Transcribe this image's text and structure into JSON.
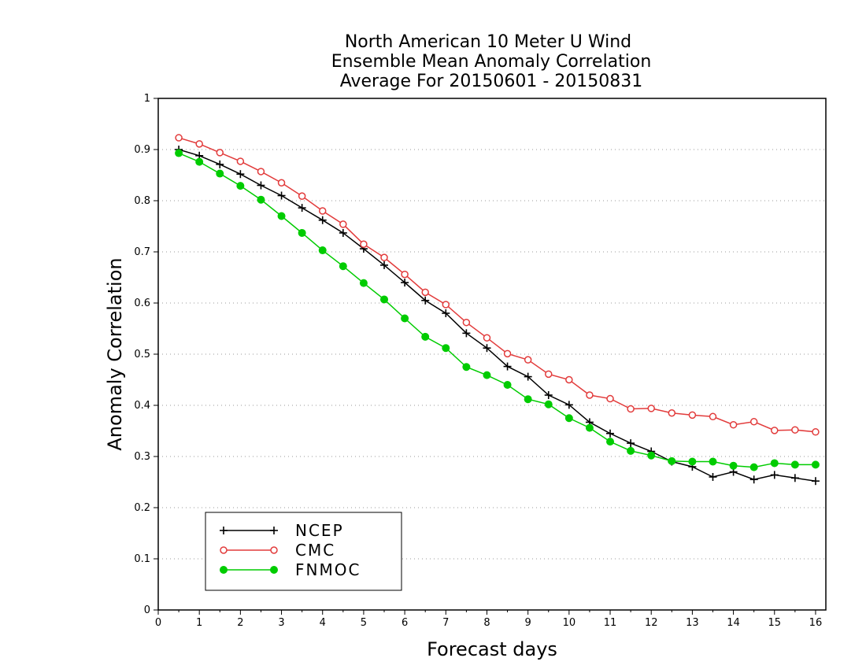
{
  "chart_data": {
    "type": "line",
    "title": [
      "North American 10 Meter U Wind",
      "Ensemble Mean Anomaly Correlation",
      "Average For 20150601 - 20150831"
    ],
    "xlabel": "Forecast days",
    "ylabel": "Anomaly Correlation",
    "xlim": [
      0,
      16.25
    ],
    "ylim": [
      0,
      1
    ],
    "xticks": [
      0,
      1,
      2,
      3,
      4,
      5,
      6,
      7,
      8,
      9,
      10,
      11,
      12,
      13,
      14,
      15,
      16
    ],
    "xtick_labels": [
      "0",
      "1",
      "2",
      "3",
      "4",
      "5",
      "6",
      "7",
      "8",
      "9",
      "10",
      "11",
      "12",
      "13",
      "14",
      "15",
      "16"
    ],
    "yticks": [
      0,
      0.1,
      0.2,
      0.3,
      0.4,
      0.5,
      0.6,
      0.7,
      0.8,
      0.9,
      1
    ],
    "ytick_labels": [
      "0",
      "0.1",
      "0.2",
      "0.3",
      "0.4",
      "0.5",
      "0.6",
      "0.7",
      "0.8",
      "0.9",
      "1"
    ],
    "grid": "horizontal dotted",
    "legend_position": "bottom-left",
    "x": [
      0.5,
      1,
      1.5,
      2,
      2.5,
      3,
      3.5,
      4,
      4.5,
      5,
      5.5,
      6,
      6.5,
      7,
      7.5,
      8,
      8.5,
      9,
      9.5,
      10,
      10.5,
      11,
      11.5,
      12,
      12.5,
      13,
      13.5,
      14,
      14.5,
      15,
      15.5,
      16
    ],
    "series": [
      {
        "name": "NCEP",
        "color": "#000000",
        "marker": "plus",
        "values": [
          0.9,
          0.888,
          0.871,
          0.852,
          0.83,
          0.81,
          0.786,
          0.762,
          0.737,
          0.706,
          0.674,
          0.64,
          0.605,
          0.58,
          0.541,
          0.512,
          0.476,
          0.456,
          0.42,
          0.401,
          0.367,
          0.345,
          0.326,
          0.31,
          0.29,
          0.28,
          0.26,
          0.27,
          0.255,
          0.264,
          0.258,
          0.252
        ]
      },
      {
        "name": "CMC",
        "color": "#e23b3b",
        "marker": "open-circle",
        "values": [
          0.923,
          0.911,
          0.894,
          0.877,
          0.857,
          0.835,
          0.809,
          0.78,
          0.754,
          0.715,
          0.689,
          0.656,
          0.621,
          0.597,
          0.562,
          0.532,
          0.501,
          0.489,
          0.461,
          0.45,
          0.42,
          0.413,
          0.393,
          0.394,
          0.385,
          0.381,
          0.378,
          0.362,
          0.368,
          0.351,
          0.352,
          0.348
        ]
      },
      {
        "name": "FNMOC",
        "color": "#00cc00",
        "marker": "filled-circle",
        "values": [
          0.893,
          0.876,
          0.853,
          0.829,
          0.802,
          0.77,
          0.737,
          0.703,
          0.672,
          0.639,
          0.607,
          0.57,
          0.534,
          0.512,
          0.475,
          0.459,
          0.44,
          0.412,
          0.402,
          0.375,
          0.356,
          0.329,
          0.311,
          0.302,
          0.291,
          0.29,
          0.29,
          0.282,
          0.279,
          0.287,
          0.284,
          0.284
        ]
      }
    ]
  }
}
